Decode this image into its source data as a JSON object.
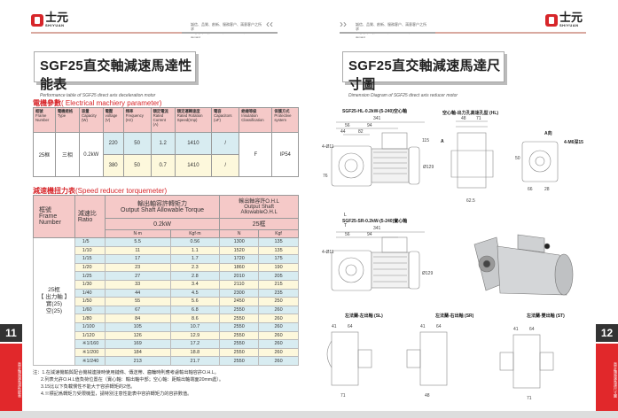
{
  "brand": {
    "name_cn": "士元",
    "name_en": "SHIYUAN",
    "slogan_cn": "誠信、品質、創新、服務客户、滿意客户之所求",
    "slogan_en": "Integrity, quality, innovation, customer service, customer demand"
  },
  "left": {
    "page_number": "11",
    "side_label": "直交軸減速馬達性能表",
    "title": "SGF25直交軸減速馬達性能表",
    "subtitle": "Performance table of SGF25 direct axis deceleration motor",
    "electrical": {
      "label_cn": "電機參數",
      "label_en": "( Electrical machiery parameter)",
      "headers": [
        [
          "框號",
          "Frame",
          "Number"
        ],
        [
          "電機規格",
          "Type"
        ],
        [
          "容量",
          "Capacity",
          "(W)"
        ],
        [
          "電壓",
          "voltage",
          "(V)"
        ],
        [
          "頻率",
          "Frequency",
          "(Hz)"
        ],
        [
          "額定電流",
          "Rated",
          "Current",
          "(A)"
        ],
        [
          "額定運轉速度",
          "Rated Rotation",
          "Speed(rmp)"
        ],
        [
          "電容",
          "Capacitors",
          "(uF)"
        ],
        [
          "絶緣等級",
          "Insulation",
          "Classification"
        ],
        [
          "保護方式",
          "Protective",
          "system"
        ]
      ],
      "frame": "25框",
      "type": "三相",
      "capacity": "0.2kW",
      "insulation": "F",
      "protection": "IP54",
      "rows": [
        {
          "voltage": "220",
          "frequency": "50",
          "current": "1.2",
          "speed": "1410",
          "capacitor": "/"
        },
        {
          "voltage": "380",
          "frequency": "50",
          "current": "0.7",
          "speed": "1410",
          "capacitor": "/"
        }
      ]
    },
    "reducer": {
      "label_cn": "減速機扭力表",
      "label_en": "(Speed reducer torquemeter)",
      "h_frame": [
        "框號",
        "Frame",
        "Number"
      ],
      "h_ratio": [
        "減速比",
        "Ratio"
      ],
      "h_torque": [
        "輸出軸容許轉矩力",
        "Output Shaft Allowable Torque"
      ],
      "h_ohl": [
        "輸出軸容許O.H.L",
        "Output Shaft",
        "AllowableO.H.L"
      ],
      "power": "0.2kW",
      "frame_sub": "25框",
      "units": [
        "N·m",
        "Kgf·m",
        "N",
        "Kgf"
      ],
      "frame_cell": [
        "25框",
        "【 出力軸 】",
        "實(25)",
        "空(25)"
      ],
      "rows": [
        [
          "1/5",
          "5.5",
          "0.56",
          "1300",
          "135"
        ],
        [
          "1/10",
          "11",
          "1.1",
          "1520",
          "135"
        ],
        [
          "1/15",
          "17",
          "1.7",
          "1720",
          "175"
        ],
        [
          "1/20",
          "23",
          "2.3",
          "1860",
          "190"
        ],
        [
          "1/25",
          "27",
          "2.8",
          "2010",
          "205"
        ],
        [
          "1/30",
          "33",
          "3.4",
          "2110",
          "215"
        ],
        [
          "1/40",
          "44",
          "4.5",
          "2300",
          "235"
        ],
        [
          "1/50",
          "55",
          "5.6",
          "2450",
          "250"
        ],
        [
          "1/60",
          "67",
          "6.8",
          "2550",
          "260"
        ],
        [
          "1/80",
          "84",
          "8.6",
          "2550",
          "260"
        ],
        [
          "1/100",
          "105",
          "10.7",
          "2550",
          "260"
        ],
        [
          "1/120",
          "126",
          "12.9",
          "2550",
          "260"
        ],
        [
          "※1/160",
          "169",
          "17.2",
          "2550",
          "260"
        ],
        [
          "※1/200",
          "184",
          "18.8",
          "2550",
          "260"
        ],
        [
          "※1/240",
          "213",
          "21.7",
          "2550",
          "260"
        ]
      ]
    },
    "notes": [
      "注：1.在減速機輸與配合機械連接時使用鏈條、傳送帶、齒輪時則應考慮輸出軸容許O.H.L。",
      "2.列表允許O.H.L值負荷位置在（實心軸：輸出軸中部；空心軸：距輸出軸端面20mm處）。",
      "3.15比以下負載慣性不能大于容許轉矩的2倍。",
      "4.※標記爲轉矩力受限機型，請特別注意性能表中容許轉矩力的容許數值。"
    ]
  },
  "right": {
    "page_number": "12",
    "side_label": "直交軸減速馬達尺寸圖",
    "title": "SGF25直交軸減速馬達尺寸圖",
    "subtitle": "Dimension Diagram of SGF25 direct axis reducer motor",
    "diagrams": {
      "hl_title": "SGF25-HL-0.2kW-(5-240)空心軸",
      "hl_section_title": "空心軸-出力孔高速孔型 (HL)",
      "a_view": "A向",
      "a_mark": "A",
      "m_label": "4-M6深15",
      "sr_title": "SGF25-SR-0.2kW-(5-240)實心軸",
      "sr_L": "L",
      "sr_T": "T",
      "sl_label": "左法蘭-左出軸 (SL)",
      "srv_label": "左法蘭-右出軸 (SR)",
      "st_label": "左法蘭-雙出軸 (ST)",
      "dims": [
        "341",
        "56",
        "94",
        "6",
        "44",
        "82",
        "8",
        "4-Ø11",
        "115",
        "Ø129",
        "71",
        "76",
        "55",
        "41",
        "64",
        "47",
        "17",
        "35",
        "40",
        "69",
        "62.5",
        "16",
        "28",
        "50",
        "48"
      ]
    }
  }
}
